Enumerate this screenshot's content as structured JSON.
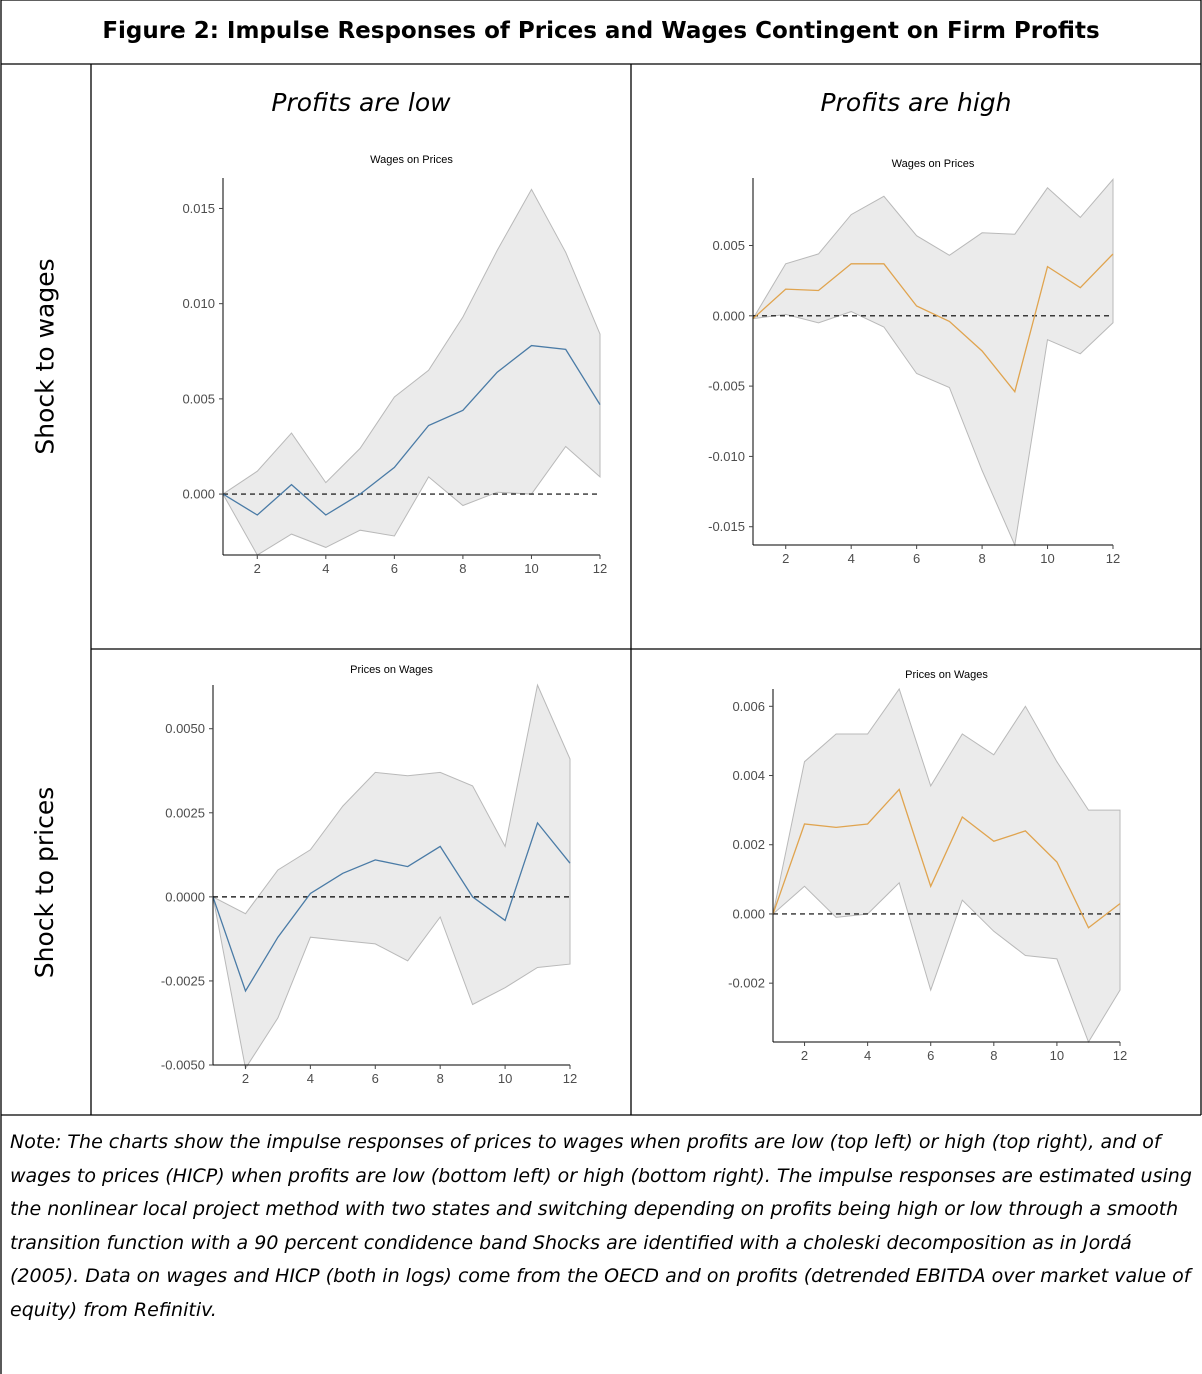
{
  "figure": {
    "title": "Figure 2: Impulse Responses of Prices and Wages Contingent on Firm Profits",
    "col_headers": [
      "Profits are low",
      "Profits are high"
    ],
    "row_headers": [
      "Shock to wages",
      "Shock to prices"
    ],
    "note": "Note: The charts show the impulse responses of prices to wages when profits are low (top left) or high (top right), and of wages to prices (HICP) when profits are low (bottom left) or high (bottom right). The impulse responses are estimated using the nonlinear local project method with two states and switching depending on profits being high or low through a smooth transition function with a 90 percent condidence band Shocks are identified with a choleski decomposition as in Jordá (2005). Data on wages and HICP (both in logs) come from the OECD and on profits (detrended EBITDA over market value of equity) from Refinitiv."
  },
  "colors": {
    "low_line": "#4a7ba6",
    "high_line": "#e0a44f",
    "band_fill": "#ebebeb",
    "band_edge": "#b9b9b9",
    "zero_line": "#000000"
  },
  "chart_data": [
    {
      "id": "top-left",
      "type": "line",
      "title": "Wages on Prices",
      "x": [
        1,
        2,
        3,
        4,
        5,
        6,
        7,
        8,
        9,
        10,
        11,
        12
      ],
      "series": [
        {
          "values": [
            0.0,
            -0.0011,
            0.0005,
            -0.0011,
            0.0,
            0.0014,
            0.0036,
            0.0044,
            0.0064,
            0.0078,
            0.0076,
            0.0047
          ]
        }
      ],
      "band_upper": [
        0.0,
        0.0012,
        0.0032,
        0.0006,
        0.0024,
        0.0051,
        0.0065,
        0.0093,
        0.0128,
        0.016,
        0.0127,
        0.0084
      ],
      "band_lower": [
        0.0,
        -0.0032,
        -0.0021,
        -0.0028,
        -0.0019,
        -0.0022,
        0.0009,
        -0.0006,
        0.0001,
        0.0,
        0.0025,
        0.0009
      ],
      "xticks": [
        2,
        4,
        6,
        8,
        10,
        12
      ],
      "yticks": [
        0.0,
        0.005,
        0.01,
        0.015
      ],
      "ytick_labels": [
        "0.000",
        "0.005",
        "0.010",
        "0.015"
      ],
      "xlim": [
        1,
        12
      ],
      "ylim": [
        -0.0032,
        0.0166
      ],
      "zero_line": true
    },
    {
      "id": "top-right",
      "type": "line",
      "title": "Wages on Prices",
      "x": [
        1,
        2,
        3,
        4,
        5,
        6,
        7,
        8,
        9,
        10,
        11,
        12
      ],
      "series": [
        {
          "values": [
            -0.0002,
            0.0019,
            0.0018,
            0.0037,
            0.0037,
            0.0007,
            -0.0004,
            -0.0025,
            -0.0054,
            0.0035,
            0.002,
            0.0044
          ]
        }
      ],
      "band_upper": [
        -0.0002,
        0.0037,
        0.0044,
        0.0072,
        0.0085,
        0.0057,
        0.0043,
        0.0059,
        0.0058,
        0.0091,
        0.007,
        0.0097
      ],
      "band_lower": [
        -0.0002,
        0.0001,
        -0.0005,
        0.0003,
        -0.0008,
        -0.0041,
        -0.0051,
        -0.011,
        -0.0163,
        -0.0017,
        -0.0027,
        -0.0005
      ],
      "xticks": [
        2,
        4,
        6,
        8,
        10,
        12
      ],
      "yticks": [
        -0.015,
        -0.01,
        -0.005,
        0.0,
        0.005
      ],
      "ytick_labels": [
        "-0.015",
        "-0.010",
        "-0.005",
        "0.000",
        "0.005"
      ],
      "xlim": [
        1,
        12
      ],
      "ylim": [
        -0.0163,
        0.0098
      ],
      "zero_line": true
    },
    {
      "id": "bottom-left",
      "type": "line",
      "title": "Prices on Wages",
      "x": [
        1,
        2,
        3,
        4,
        5,
        6,
        7,
        8,
        9,
        10,
        11,
        12
      ],
      "series": [
        {
          "values": [
            0.0,
            -0.0028,
            -0.0012,
            0.0001,
            0.0007,
            0.0011,
            0.0009,
            0.0015,
            0.0,
            -0.0007,
            0.0022,
            0.001
          ]
        }
      ],
      "band_upper": [
        0.0,
        -0.0005,
        0.0008,
        0.0014,
        0.0027,
        0.0037,
        0.0036,
        0.0037,
        0.0033,
        0.0015,
        0.0063,
        0.0041
      ],
      "band_lower": [
        0.0,
        -0.0051,
        -0.0036,
        -0.0012,
        -0.0013,
        -0.0014,
        -0.0019,
        -0.0006,
        -0.0032,
        -0.0027,
        -0.0021,
        -0.002
      ],
      "xticks": [
        2,
        4,
        6,
        8,
        10,
        12
      ],
      "yticks": [
        -0.005,
        -0.0025,
        0.0,
        0.0025,
        0.005
      ],
      "ytick_labels": [
        "-0.0050",
        "-0.0025",
        "0.0000",
        "0.0025",
        "0.0050"
      ],
      "xlim": [
        1,
        12
      ],
      "ylim": [
        -0.005,
        0.0063
      ],
      "zero_line": true
    },
    {
      "id": "bottom-right",
      "type": "line",
      "title": "Prices on Wages",
      "x": [
        1,
        2,
        3,
        4,
        5,
        6,
        7,
        8,
        9,
        10,
        11,
        12
      ],
      "series": [
        {
          "values": [
            0.0,
            0.0026,
            0.0025,
            0.0026,
            0.0036,
            0.0008,
            0.0028,
            0.0021,
            0.0024,
            0.0015,
            -0.0004,
            0.0003
          ]
        }
      ],
      "band_upper": [
        0.0,
        0.0044,
        0.0052,
        0.0052,
        0.0065,
        0.0037,
        0.0052,
        0.0046,
        0.006,
        0.0044,
        0.003,
        0.003
      ],
      "band_lower": [
        0.0,
        0.0008,
        -0.0001,
        0.0,
        0.0009,
        -0.0022,
        0.0004,
        -0.0005,
        -0.0012,
        -0.0013,
        -0.0037,
        -0.0022
      ],
      "xticks": [
        2,
        4,
        6,
        8,
        10,
        12
      ],
      "yticks": [
        -0.002,
        0.0,
        0.002,
        0.004,
        0.006
      ],
      "ytick_labels": [
        "-0.002",
        "0.000",
        "0.002",
        "0.004",
        "0.006"
      ],
      "xlim": [
        1,
        12
      ],
      "ylim": [
        -0.0037,
        0.0065
      ],
      "zero_line": true
    }
  ]
}
